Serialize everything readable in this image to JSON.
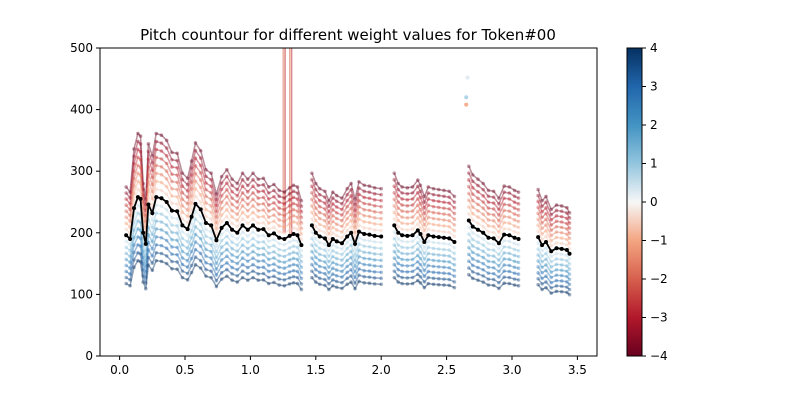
{
  "chart_data": {
    "type": "line",
    "title": "Pitch countour for different weight values for Token#00",
    "xlabel": "",
    "ylabel": "",
    "xlim": [
      -0.15,
      3.65
    ],
    "ylim": [
      0,
      500
    ],
    "xticks": [
      0.0,
      0.5,
      1.0,
      1.5,
      2.0,
      2.5,
      3.0,
      3.5
    ],
    "xtick_labels": [
      "0.0",
      "0.5",
      "1.0",
      "1.5",
      "2.0",
      "2.5",
      "3.0",
      "3.5"
    ],
    "yticks": [
      0,
      100,
      200,
      300,
      400,
      500
    ],
    "ytick_labels": [
      "0",
      "100",
      "200",
      "300",
      "400",
      "500"
    ],
    "grid": false,
    "colorbar": {
      "colormap": "RdBu",
      "range": [
        -4,
        4
      ],
      "ticks": [
        -4,
        -3,
        -2,
        -1,
        0,
        1,
        2,
        3,
        4
      ],
      "tick_labels": [
        "−4",
        "−3",
        "−2",
        "−1",
        "0",
        "1",
        "2",
        "3",
        "4"
      ]
    },
    "weights": [
      -4,
      -3.5,
      -3,
      -2.5,
      -2,
      -1.5,
      -1,
      -0.5,
      0,
      0.5,
      1,
      1.5,
      2,
      2.5,
      3,
      3.5,
      4
    ],
    "baseline_color": "#000000",
    "baseline_segments": [
      [
        [
          0.05,
          196
        ],
        [
          0.08,
          190
        ],
        [
          0.11,
          240
        ],
        [
          0.14,
          258
        ],
        [
          0.16,
          255
        ],
        [
          0.18,
          200
        ],
        [
          0.2,
          182
        ],
        [
          0.22,
          246
        ],
        [
          0.25,
          232
        ],
        [
          0.28,
          258
        ],
        [
          0.32,
          256
        ],
        [
          0.36,
          250
        ],
        [
          0.4,
          236
        ],
        [
          0.44,
          235
        ],
        [
          0.48,
          212
        ],
        [
          0.52,
          206
        ],
        [
          0.55,
          226
        ],
        [
          0.58,
          247
        ],
        [
          0.62,
          238
        ],
        [
          0.66,
          216
        ],
        [
          0.7,
          212
        ],
        [
          0.74,
          188
        ],
        [
          0.78,
          208
        ],
        [
          0.82,
          216
        ],
        [
          0.86,
          205
        ],
        [
          0.9,
          200
        ],
        [
          0.94,
          212
        ],
        [
          0.98,
          205
        ],
        [
          1.02,
          212
        ],
        [
          1.06,
          205
        ],
        [
          1.1,
          206
        ],
        [
          1.14,
          196
        ],
        [
          1.18,
          199
        ],
        [
          1.22,
          192
        ],
        [
          1.26,
          190
        ],
        [
          1.3,
          195
        ],
        [
          1.33,
          198
        ],
        [
          1.36,
          196
        ],
        [
          1.39,
          180
        ]
      ],
      [
        [
          1.47,
          212
        ],
        [
          1.5,
          200
        ],
        [
          1.53,
          194
        ],
        [
          1.57,
          191
        ],
        [
          1.6,
          180
        ],
        [
          1.63,
          190
        ],
        [
          1.66,
          186
        ],
        [
          1.7,
          183
        ],
        [
          1.74,
          194
        ],
        [
          1.77,
          200
        ],
        [
          1.8,
          182
        ],
        [
          1.83,
          202
        ],
        [
          1.87,
          198
        ],
        [
          1.91,
          197
        ],
        [
          1.95,
          195
        ],
        [
          2.0,
          194
        ]
      ],
      [
        [
          2.1,
          212
        ],
        [
          2.13,
          200
        ],
        [
          2.16,
          196
        ],
        [
          2.2,
          195
        ],
        [
          2.24,
          196
        ],
        [
          2.28,
          204
        ],
        [
          2.3,
          198
        ],
        [
          2.33,
          185
        ],
        [
          2.36,
          196
        ],
        [
          2.4,
          194
        ],
        [
          2.44,
          193
        ],
        [
          2.48,
          192
        ],
        [
          2.52,
          191
        ],
        [
          2.56,
          185
        ]
      ],
      [
        [
          2.67,
          220
        ],
        [
          2.7,
          210
        ],
        [
          2.74,
          205
        ],
        [
          2.78,
          200
        ],
        [
          2.82,
          192
        ],
        [
          2.86,
          191
        ],
        [
          2.9,
          183
        ],
        [
          2.94,
          197
        ],
        [
          2.98,
          196
        ],
        [
          3.02,
          192
        ],
        [
          3.05,
          190
        ]
      ],
      [
        [
          3.2,
          193
        ],
        [
          3.23,
          180
        ],
        [
          3.26,
          185
        ],
        [
          3.3,
          170
        ],
        [
          3.34,
          175
        ],
        [
          3.38,
          174
        ],
        [
          3.42,
          172
        ],
        [
          3.44,
          166
        ]
      ]
    ],
    "spread_per_unit_weight": 0.1,
    "outliers": [
      {
        "x": 2.65,
        "y": 420,
        "color": "#a9cfe5"
      },
      {
        "x": 2.65,
        "y": 408,
        "color": "#f4a582"
      },
      {
        "x": 2.66,
        "y": 452,
        "color": "#ddeaf3"
      }
    ],
    "spikes": [
      {
        "x": 1.25,
        "y_base": 200,
        "y_peak": 500
      },
      {
        "x": 1.3,
        "y_base": 195,
        "y_peak": 500
      }
    ]
  }
}
